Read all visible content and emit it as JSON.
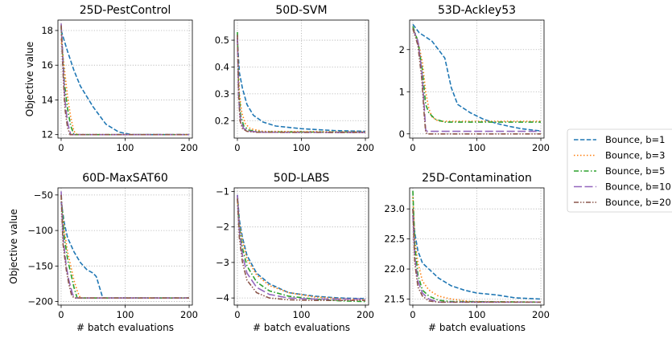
{
  "chart_data": {
    "type": "line",
    "legend": {
      "placement": "right",
      "entries": [
        {
          "label": "Bounce, b=1",
          "color": "#1f77b4",
          "dash": "dashed"
        },
        {
          "label": "Bounce, b=3",
          "color": "#ff7f0e",
          "dash": "dotted"
        },
        {
          "label": "Bounce, b=5",
          "color": "#2ca02c",
          "dash": "dashdot"
        },
        {
          "label": "Bounce, b=10",
          "color": "#9467bd",
          "dash": "longdash"
        },
        {
          "label": "Bounce, b=20",
          "color": "#8c564b",
          "dash": "dashdotdot"
        }
      ]
    },
    "xlabel": "# batch evaluations",
    "ylabel": "Objective value",
    "grid": true,
    "panels": [
      {
        "title": "25D-PestControl",
        "xlim": [
          -5,
          205
        ],
        "ylim": [
          11.8,
          18.6
        ],
        "xticks": [
          0,
          100,
          200
        ],
        "yticks": [
          12,
          14,
          16,
          18
        ],
        "ytick_labels": [
          "12",
          "14",
          "16",
          "18"
        ],
        "series": [
          {
            "x": [
              0,
              10,
              20,
              30,
              50,
              70,
              90,
              110,
              200
            ],
            "y": [
              18.0,
              16.8,
              15.7,
              14.8,
              13.6,
              12.6,
              12.15,
              12.0,
              12.0
            ]
          },
          {
            "x": [
              0,
              5,
              10,
              15,
              20,
              25,
              200
            ],
            "y": [
              17.5,
              15.8,
              14.2,
              13.0,
              12.2,
              12.0,
              12.0
            ]
          },
          {
            "x": [
              0,
              5,
              10,
              15,
              20,
              200
            ],
            "y": [
              18.2,
              15.0,
              13.5,
              12.5,
              12.0,
              12.0
            ]
          },
          {
            "x": [
              0,
              3,
              6,
              10,
              15,
              200
            ],
            "y": [
              18.4,
              16.0,
              14.0,
              12.7,
              12.0,
              12.0
            ]
          },
          {
            "x": [
              0,
              3,
              6,
              10,
              14,
              200
            ],
            "y": [
              18.3,
              15.5,
              13.5,
              12.4,
              12.0,
              12.0
            ]
          }
        ]
      },
      {
        "title": "50D-SVM",
        "xlim": [
          -5,
          205
        ],
        "ylim": [
          0.135,
          0.575
        ],
        "xticks": [
          0,
          100,
          200
        ],
        "yticks": [
          0.2,
          0.3,
          0.4,
          0.5
        ],
        "ytick_labels": [
          "0.2",
          "0.3",
          "0.4",
          "0.5"
        ],
        "series": [
          {
            "x": [
              0,
              3,
              8,
              15,
              25,
              40,
              60,
              100,
              150,
              200
            ],
            "y": [
              0.5,
              0.38,
              0.32,
              0.26,
              0.22,
              0.195,
              0.18,
              0.17,
              0.163,
              0.16
            ]
          },
          {
            "x": [
              0,
              3,
              7,
              12,
              20,
              40,
              200
            ],
            "y": [
              0.5,
              0.3,
              0.23,
              0.19,
              0.17,
              0.16,
              0.158
            ]
          },
          {
            "x": [
              0,
              2,
              5,
              10,
              18,
              35,
              200
            ],
            "y": [
              0.53,
              0.32,
              0.22,
              0.18,
              0.165,
              0.158,
              0.157
            ]
          },
          {
            "x": [
              0,
              2,
              5,
              10,
              20,
              40,
              200
            ],
            "y": [
              0.51,
              0.28,
              0.2,
              0.17,
              0.16,
              0.157,
              0.156
            ]
          },
          {
            "x": [
              0,
              2,
              4,
              8,
              15,
              30,
              200
            ],
            "y": [
              0.52,
              0.3,
              0.2,
              0.17,
              0.16,
              0.157,
              0.156
            ]
          }
        ]
      },
      {
        "title": "53D-Ackley53",
        "xlim": [
          -5,
          205
        ],
        "ylim": [
          -0.1,
          2.7
        ],
        "xticks": [
          0,
          100,
          200
        ],
        "yticks": [
          0,
          1,
          2
        ],
        "ytick_labels": [
          "0",
          "1",
          "2"
        ],
        "series": [
          {
            "x": [
              0,
              10,
              20,
              30,
              40,
              50,
              60,
              70,
              90,
              110,
              130,
              150,
              170,
              200
            ],
            "y": [
              2.6,
              2.4,
              2.3,
              2.2,
              2.0,
              1.8,
              1.1,
              0.7,
              0.5,
              0.35,
              0.25,
              0.18,
              0.12,
              0.07
            ]
          },
          {
            "x": [
              0,
              8,
              15,
              20,
              25,
              30,
              40,
              200
            ],
            "y": [
              2.5,
              2.2,
              1.7,
              1.0,
              0.6,
              0.4,
              0.3,
              0.3
            ]
          },
          {
            "x": [
              0,
              8,
              15,
              20,
              25,
              35,
              50,
              200
            ],
            "y": [
              2.55,
              2.2,
              1.5,
              0.7,
              0.5,
              0.35,
              0.28,
              0.28
            ]
          },
          {
            "x": [
              0,
              8,
              14,
              18,
              20,
              22,
              200
            ],
            "y": [
              2.5,
              2.2,
              1.5,
              0.6,
              0.1,
              0.06,
              0.06
            ]
          },
          {
            "x": [
              0,
              8,
              14,
              18,
              20,
              22,
              200
            ],
            "y": [
              2.5,
              2.1,
              1.3,
              0.4,
              0.05,
              0.0,
              0.0
            ]
          }
        ]
      },
      {
        "title": "60D-MaxSAT60",
        "xlim": [
          -5,
          205
        ],
        "ylim": [
          -205,
          -40
        ],
        "xticks": [
          0,
          100,
          200
        ],
        "yticks": [
          -50,
          -100,
          -150,
          -200
        ],
        "ytick_labels": [
          "−50",
          "−100",
          "−150",
          "−200"
        ],
        "series": [
          {
            "x": [
              0,
              5,
              10,
              20,
              30,
              40,
              50,
              55,
              65,
              200
            ],
            "y": [
              -60,
              -90,
              -110,
              -130,
              -145,
              -155,
              -160,
              -165,
              -195,
              -195
            ]
          },
          {
            "x": [
              0,
              5,
              10,
              15,
              20,
              25,
              30,
              200
            ],
            "y": [
              -55,
              -100,
              -130,
              -150,
              -170,
              -185,
              -195,
              -195
            ]
          },
          {
            "x": [
              0,
              5,
              10,
              15,
              20,
              25,
              200
            ],
            "y": [
              -50,
              -110,
              -140,
              -160,
              -180,
              -195,
              -195
            ]
          },
          {
            "x": [
              0,
              3,
              8,
              12,
              18,
              22,
              200
            ],
            "y": [
              -45,
              -110,
              -150,
              -170,
              -190,
              -195,
              -195
            ]
          },
          {
            "x": [
              0,
              3,
              8,
              12,
              16,
              20,
              200
            ],
            "y": [
              -50,
              -120,
              -155,
              -175,
              -190,
              -195,
              -195
            ]
          }
        ]
      },
      {
        "title": "50D-LABS",
        "xlim": [
          -5,
          205
        ],
        "ylim": [
          -4.2,
          -0.9
        ],
        "xticks": [
          0,
          100,
          200
        ],
        "yticks": [
          -1,
          -2,
          -3,
          -4
        ],
        "ytick_labels": [
          "−1",
          "−2",
          "−3",
          "−4"
        ],
        "series": [
          {
            "x": [
              0,
              3,
              8,
              15,
              30,
              50,
              80,
              120,
              160,
              200
            ],
            "y": [
              -1.1,
              -1.8,
              -2.3,
              -2.8,
              -3.3,
              -3.6,
              -3.85,
              -3.95,
              -4.0,
              -4.02
            ]
          },
          {
            "x": [
              0,
              3,
              8,
              15,
              30,
              50,
              80,
              120,
              160,
              200
            ],
            "y": [
              -1.15,
              -1.9,
              -2.4,
              -2.9,
              -3.35,
              -3.65,
              -3.85,
              -3.97,
              -4.02,
              -4.05
            ]
          },
          {
            "x": [
              0,
              3,
              8,
              15,
              30,
              50,
              80,
              120,
              160,
              200
            ],
            "y": [
              -1.2,
              -2.0,
              -2.6,
              -3.1,
              -3.55,
              -3.8,
              -3.95,
              -4.03,
              -4.08,
              -4.1
            ]
          },
          {
            "x": [
              0,
              3,
              8,
              15,
              30,
              50,
              80,
              120,
              160,
              200
            ],
            "y": [
              -1.1,
              -2.1,
              -2.8,
              -3.3,
              -3.7,
              -3.9,
              -4.0,
              -4.03,
              -4.03,
              -4.03
            ]
          },
          {
            "x": [
              0,
              3,
              8,
              15,
              30,
              50,
              80,
              120,
              160,
              200
            ],
            "y": [
              -1.2,
              -2.3,
              -3.0,
              -3.5,
              -3.85,
              -4.0,
              -4.05,
              -4.07,
              -4.07,
              -4.07
            ]
          }
        ]
      },
      {
        "title": "25D-Contamination",
        "xlim": [
          -5,
          205
        ],
        "ylim": [
          21.4,
          23.35
        ],
        "xticks": [
          0,
          100,
          200
        ],
        "yticks": [
          21.5,
          22.0,
          22.5,
          23.0
        ],
        "ytick_labels": [
          "21.5",
          "22.0",
          "22.5",
          "23.0"
        ],
        "series": [
          {
            "x": [
              0,
              3,
              8,
              15,
              25,
              40,
              60,
              80,
              100,
              130,
              160,
              200
            ],
            "y": [
              23.0,
              22.6,
              22.3,
              22.1,
              22.0,
              21.85,
              21.72,
              21.65,
              21.6,
              21.57,
              21.52,
              21.5
            ]
          },
          {
            "x": [
              0,
              3,
              8,
              15,
              25,
              40,
              60,
              90,
              200
            ],
            "y": [
              23.2,
              22.5,
              22.1,
              21.8,
              21.65,
              21.55,
              21.5,
              21.46,
              21.45
            ]
          },
          {
            "x": [
              0,
              3,
              8,
              15,
              25,
              40,
              60,
              200
            ],
            "y": [
              23.3,
              22.4,
              21.9,
              21.65,
              21.55,
              21.48,
              21.46,
              21.45
            ]
          },
          {
            "x": [
              0,
              3,
              8,
              15,
              25,
              40,
              200
            ],
            "y": [
              22.9,
              22.2,
              21.8,
              21.6,
              21.5,
              21.45,
              21.45
            ]
          },
          {
            "x": [
              0,
              3,
              8,
              15,
              25,
              40,
              200
            ],
            "y": [
              23.0,
              22.1,
              21.7,
              21.55,
              21.47,
              21.45,
              21.45
            ]
          }
        ]
      }
    ]
  }
}
